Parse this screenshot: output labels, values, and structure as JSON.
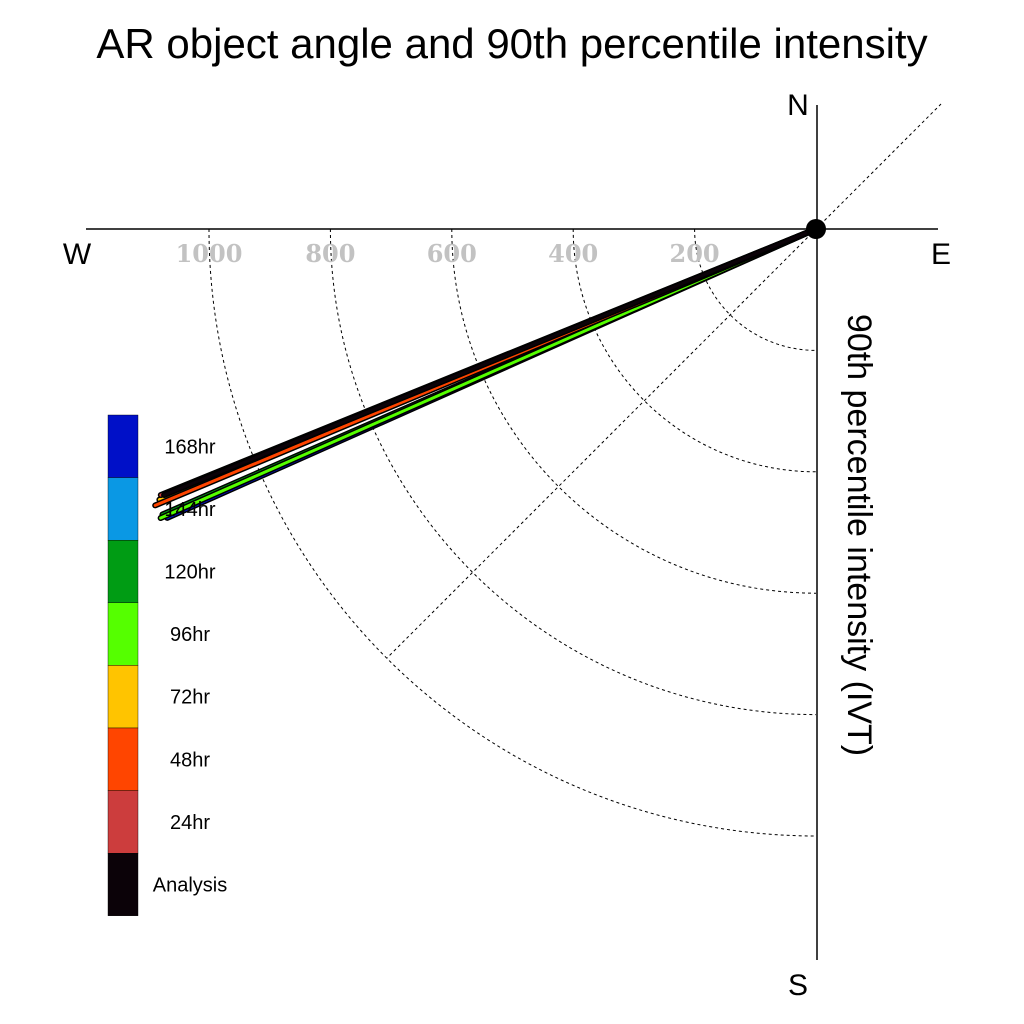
{
  "chart_data": {
    "type": "polar-vector",
    "title": "AR object angle and 90th percentile intensity",
    "compass": {
      "north": "N",
      "south": "S",
      "east": "E",
      "west": "W"
    },
    "radial_axis_label": "90th percentile intensity (IVT)",
    "radial_ticks": [
      200,
      400,
      600,
      800,
      1000
    ],
    "radial_tick_labels": [
      "200",
      "400",
      "600",
      "800",
      "1000"
    ],
    "radial_max": 1200,
    "grid": "dashed quarter-circle arcs and diagonals",
    "series": [
      {
        "name": "Analysis",
        "angle_deg": 247.8,
        "intensity": 1160,
        "color": "#0b0208"
      },
      {
        "name": "24hr",
        "angle_deg": 247.9,
        "intensity": 1165,
        "color": "#cc3d3d"
      },
      {
        "name": "48hr",
        "angle_deg": 247.3,
        "intensity": 1180,
        "color": "#ff4500"
      },
      {
        "name": "72hr",
        "angle_deg": 247.6,
        "intensity": 1170,
        "color": "#ffc400"
      },
      {
        "name": "96hr",
        "angle_deg": 246.2,
        "intensity": 1180,
        "color": "#55ff00"
      },
      {
        "name": "120hr",
        "angle_deg": 246.4,
        "intensity": 1175,
        "color": "#009c14"
      },
      {
        "name": "144hr",
        "angle_deg": 247.5,
        "intensity": 1150,
        "color": "#0a98e4"
      },
      {
        "name": "168hr",
        "angle_deg": 246.0,
        "intensity": 1170,
        "color": "#0010c8"
      }
    ],
    "legend": {
      "placement": "left",
      "entries": [
        {
          "label": "168hr",
          "color": "#0010c8"
        },
        {
          "label": "144hr",
          "color": "#0a98e4"
        },
        {
          "label": "120hr",
          "color": "#009c14"
        },
        {
          "label": "96hr",
          "color": "#55ff00"
        },
        {
          "label": "72hr",
          "color": "#ffc400"
        },
        {
          "label": "48hr",
          "color": "#ff4500"
        },
        {
          "label": "24hr",
          "color": "#cc3d3d"
        },
        {
          "label": "Analysis",
          "color": "#0b0208"
        }
      ]
    },
    "draw_order": [
      "168hr",
      "144hr",
      "120hr",
      "96hr",
      "72hr",
      "48hr",
      "24hr",
      "Analysis"
    ]
  }
}
